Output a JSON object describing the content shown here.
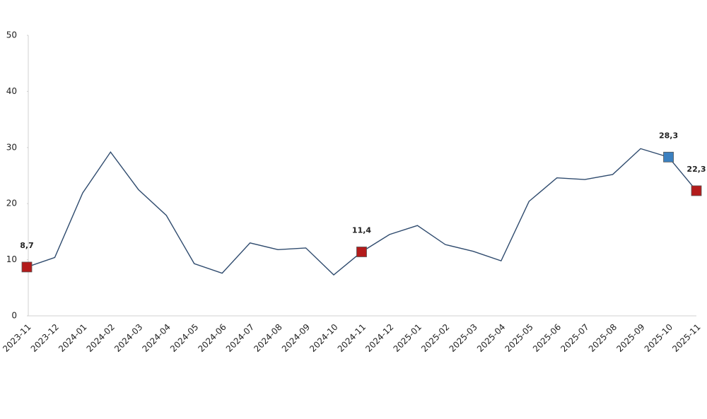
{
  "chart_data": {
    "type": "line",
    "categories": [
      "2023-11",
      "2023-12",
      "2024-01",
      "2024-02",
      "2024-03",
      "2024-04",
      "2024-05",
      "2024-06",
      "2024-07",
      "2024-08",
      "2024-09",
      "2024-10",
      "2024-11",
      "2024-12",
      "2025-01",
      "2025-02",
      "2025-03",
      "2025-04",
      "2025-05",
      "2025-06",
      "2025-07",
      "2025-08",
      "2025-09",
      "2025-10",
      "2025-11"
    ],
    "series": [
      {
        "color": "#2f4b6e",
        "values": [
          8.7,
          10.4,
          21.9,
          29.2,
          22.5,
          17.9,
          9.3,
          7.6,
          13.0,
          11.8,
          12.1,
          7.3,
          11.4,
          14.5,
          16.1,
          12.7,
          11.5,
          9.8,
          20.4,
          24.6,
          24.3,
          25.2,
          29.8,
          28.3,
          22.3
        ],
        "value_labels": [
          "8,7",
          null,
          null,
          null,
          null,
          null,
          null,
          null,
          null,
          null,
          null,
          null,
          "11,4",
          null,
          null,
          null,
          null,
          null,
          null,
          null,
          null,
          null,
          null,
          "28,3",
          "22,3"
        ],
        "marker_colors": [
          "#b31b1b",
          null,
          null,
          null,
          null,
          null,
          null,
          null,
          null,
          null,
          null,
          null,
          "#b31b1b",
          null,
          null,
          null,
          null,
          null,
          null,
          null,
          null,
          null,
          null,
          "#3b80c0",
          "#b31b1b"
        ]
      }
    ],
    "ylim": [
      0,
      50
    ],
    "yticks": [
      0,
      10,
      20,
      30,
      40,
      50
    ],
    "grid": false
  }
}
